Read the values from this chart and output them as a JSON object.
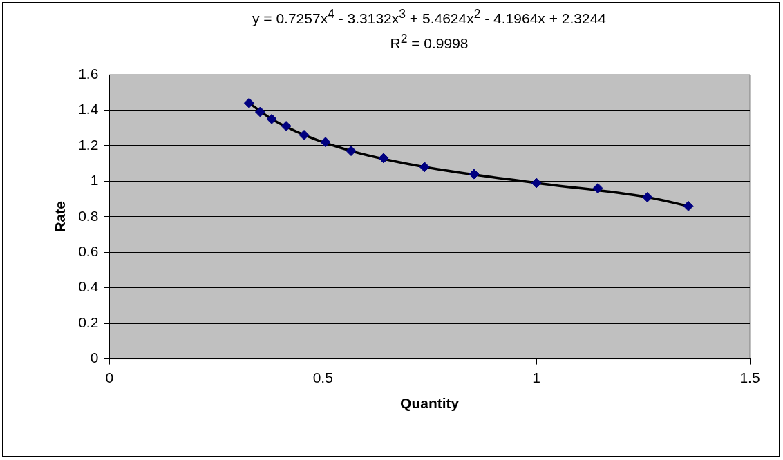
{
  "chart_data": {
    "type": "scatter",
    "title": "y = 0.7257x$^{4}$ - 3.3132x$^{3}$ + 5.4624x$^{2}$ - 4.1964x + 2.3244",
    "subtitle": "R$^{2}$ = 0.9998",
    "xlabel": "Quantity",
    "ylabel": "Rate",
    "x": [
      0.327,
      0.353,
      0.38,
      0.414,
      0.456,
      0.506,
      0.566,
      0.642,
      0.738,
      0.854,
      1.0,
      1.144,
      1.26,
      1.356
    ],
    "series": [
      {
        "color": "#000080",
        "values": [
          1.44,
          1.39,
          1.35,
          1.31,
          1.26,
          1.22,
          1.17,
          1.13,
          1.08,
          1.04,
          0.99,
          0.96,
          0.91,
          0.86
        ]
      },
      {
        "type": "line",
        "marker": "none",
        "color": "#000000",
        "x": [
          0.327,
          0.38,
          0.456,
          0.566,
          0.738,
          1.0,
          1.26,
          1.356
        ],
        "values": [
          1.44,
          1.35,
          1.26,
          1.17,
          1.08,
          0.99,
          0.91,
          0.86
        ]
      }
    ],
    "xlim": [
      0,
      1.5
    ],
    "xticks": [
      0,
      0.5,
      1,
      1.5
    ],
    "ylim": [
      0,
      1.6
    ],
    "yticks": [
      0,
      0.2,
      0.4,
      0.6,
      0.8,
      1,
      1.2,
      1.4,
      1.6
    ],
    "grid": "y",
    "legend": false,
    "marker": "diamond"
  }
}
